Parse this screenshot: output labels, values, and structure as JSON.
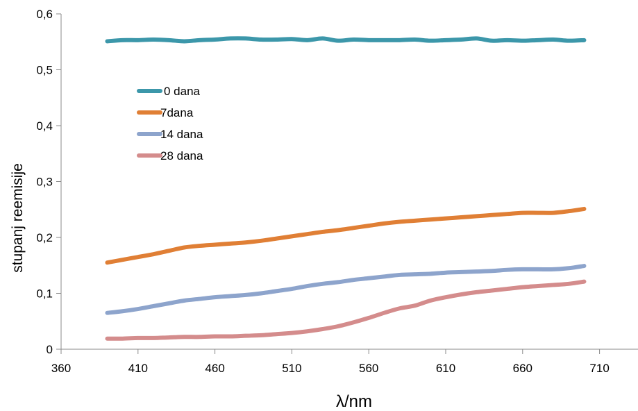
{
  "chart_data": {
    "type": "line",
    "xlabel": "λ/nm",
    "ylabel": "stupanj reemisije",
    "xlim": [
      360,
      735
    ],
    "ylim": [
      0,
      0.6
    ],
    "x_ticks": [
      360,
      410,
      460,
      510,
      560,
      610,
      660,
      710
    ],
    "x_tick_labels": [
      "360",
      "410",
      "460",
      "510",
      "560",
      "610",
      "660",
      "710"
    ],
    "y_ticks": [
      0,
      0.1,
      0.2,
      0.3,
      0.4,
      0.5,
      0.6
    ],
    "y_tick_labels": [
      "0",
      "0,1",
      "0,2",
      "0,3",
      "0,4",
      "0,5",
      "0,6"
    ],
    "grid": false,
    "legend_position": "inside-top-left",
    "x": [
      390,
      400,
      410,
      420,
      430,
      440,
      450,
      460,
      470,
      480,
      490,
      500,
      510,
      520,
      530,
      540,
      550,
      560,
      570,
      580,
      590,
      600,
      610,
      620,
      630,
      640,
      650,
      660,
      670,
      680,
      690,
      700
    ],
    "series": [
      {
        "name": "0 dana",
        "color": "#3c97aa",
        "values": [
          0.551,
          0.553,
          0.553,
          0.554,
          0.553,
          0.551,
          0.553,
          0.554,
          0.556,
          0.556,
          0.554,
          0.554,
          0.555,
          0.553,
          0.556,
          0.552,
          0.554,
          0.553,
          0.553,
          0.553,
          0.554,
          0.552,
          0.553,
          0.554,
          0.556,
          0.552,
          0.553,
          0.552,
          0.553,
          0.554,
          0.552,
          0.553
        ]
      },
      {
        "name": "7dana",
        "color": "#e07f35",
        "values": [
          0.155,
          0.16,
          0.165,
          0.17,
          0.176,
          0.182,
          0.185,
          0.187,
          0.189,
          0.191,
          0.194,
          0.198,
          0.202,
          0.206,
          0.21,
          0.213,
          0.217,
          0.221,
          0.225,
          0.228,
          0.23,
          0.232,
          0.234,
          0.236,
          0.238,
          0.24,
          0.242,
          0.244,
          0.244,
          0.244,
          0.247,
          0.251
        ]
      },
      {
        "name": "14 dana",
        "color": "#8da4cc",
        "values": [
          0.065,
          0.068,
          0.072,
          0.077,
          0.082,
          0.087,
          0.09,
          0.093,
          0.095,
          0.097,
          0.1,
          0.104,
          0.108,
          0.113,
          0.117,
          0.12,
          0.124,
          0.127,
          0.13,
          0.133,
          0.134,
          0.135,
          0.137,
          0.138,
          0.139,
          0.14,
          0.142,
          0.143,
          0.143,
          0.143,
          0.145,
          0.149
        ]
      },
      {
        "name": "28 dana",
        "color": "#d48c8c",
        "values": [
          0.019,
          0.019,
          0.02,
          0.02,
          0.021,
          0.022,
          0.022,
          0.023,
          0.023,
          0.024,
          0.025,
          0.027,
          0.029,
          0.032,
          0.036,
          0.041,
          0.048,
          0.056,
          0.065,
          0.073,
          0.078,
          0.087,
          0.093,
          0.098,
          0.102,
          0.105,
          0.108,
          0.111,
          0.113,
          0.115,
          0.117,
          0.121
        ]
      }
    ]
  }
}
